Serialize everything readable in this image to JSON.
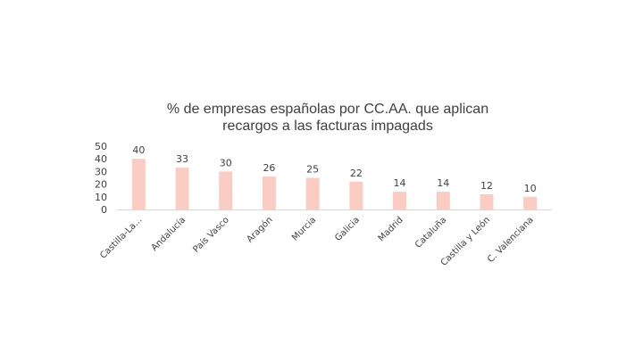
{
  "chart_data": {
    "type": "bar",
    "title": "% de empresas españolas por CC.AA. que aplican recargos a las facturas impagads",
    "title_lines": [
      "% de empresas españolas por CC.AA. que aplican",
      "recargos a las facturas impagads"
    ],
    "categories": [
      "Castilla-La...",
      "Andalucía",
      "País Vasco",
      "Aragón",
      "Murcia",
      "Galicia",
      "Madrid",
      "Cataluña",
      "Castilla y León",
      "C. Valenciana"
    ],
    "values": [
      40,
      33,
      30,
      26,
      25,
      22,
      14,
      14,
      12,
      10
    ],
    "value_labels": [
      "40",
      "33",
      "30",
      "26",
      "25",
      "22",
      "14",
      "14",
      "12",
      "10"
    ],
    "y_ticks": [
      "0",
      "10",
      "20",
      "30",
      "40",
      "50"
    ],
    "ylim": [
      0,
      50
    ],
    "xlabel": "",
    "ylabel": "",
    "grid": false,
    "legend": "none",
    "bar_color": "#f9ccc4",
    "axis_color": "#d9d9d9",
    "text_color": "#404040"
  }
}
